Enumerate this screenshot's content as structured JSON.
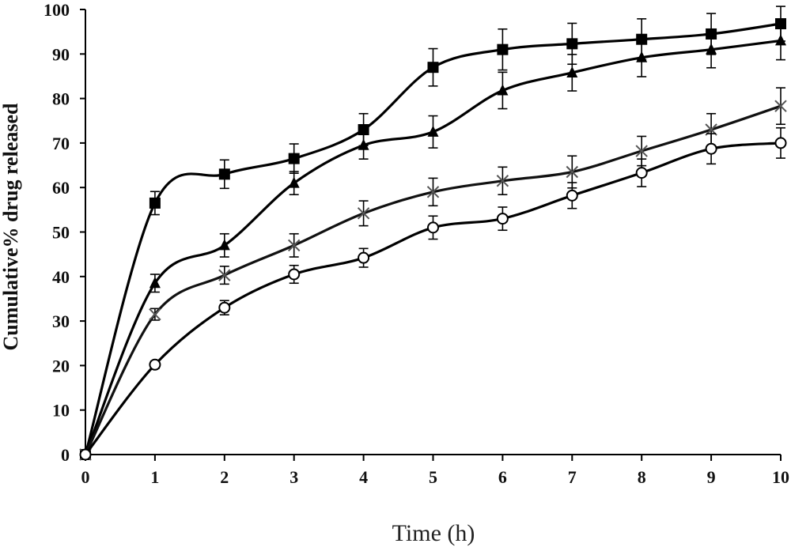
{
  "chart_data": {
    "type": "line",
    "title": "",
    "xlabel": "Time (h)",
    "ylabel": "Cumulative% drug released",
    "xlim": [
      0,
      10
    ],
    "ylim": [
      0,
      100
    ],
    "x_ticks": [
      "0",
      "1",
      "2",
      "3",
      "4",
      "5",
      "6",
      "7",
      "8",
      "9",
      "10"
    ],
    "y_ticks": [
      "0",
      "10",
      "20",
      "30",
      "40",
      "50",
      "60",
      "70",
      "80",
      "90",
      "100"
    ],
    "grid": false,
    "legend": "none",
    "x": [
      0,
      1,
      2,
      3,
      4,
      5,
      6,
      7,
      8,
      9,
      10
    ],
    "series": [
      {
        "marker": "filled-square",
        "color": "#000000",
        "values": [
          0,
          56.5,
          63,
          66.5,
          73,
          87,
          91,
          92.3,
          93.3,
          94.5,
          96.8
        ],
        "errors": [
          0,
          2.6,
          3.2,
          3.3,
          3.6,
          4.2,
          4.6,
          4.6,
          4.6,
          4.6,
          3.9
        ]
      },
      {
        "marker": "filled-triangle",
        "color": "#000000",
        "values": [
          0,
          38.5,
          47,
          61,
          69.5,
          72.5,
          81.8,
          85.8,
          89.2,
          91,
          93
        ],
        "errors": [
          0,
          2.0,
          2.6,
          2.6,
          3.1,
          3.6,
          4.1,
          4.1,
          4.3,
          4.1,
          4.3
        ]
      },
      {
        "marker": "cross",
        "color": "#555555",
        "values": [
          0,
          31.5,
          40.3,
          47,
          54.2,
          59,
          61.5,
          63.5,
          68.2,
          73,
          78.3
        ],
        "errors": [
          0,
          1.3,
          2.0,
          2.6,
          2.8,
          3.1,
          3.1,
          3.6,
          3.3,
          3.6,
          4.1
        ]
      },
      {
        "marker": "open-circle",
        "color": "#000000",
        "values": [
          0,
          20.2,
          33,
          40.5,
          44.2,
          51,
          53,
          58.2,
          63.3,
          68.7,
          70
        ],
        "errors": [
          0,
          0.8,
          1.6,
          2.0,
          2.1,
          2.6,
          2.6,
          2.9,
          3.1,
          3.4,
          3.4
        ]
      }
    ]
  }
}
